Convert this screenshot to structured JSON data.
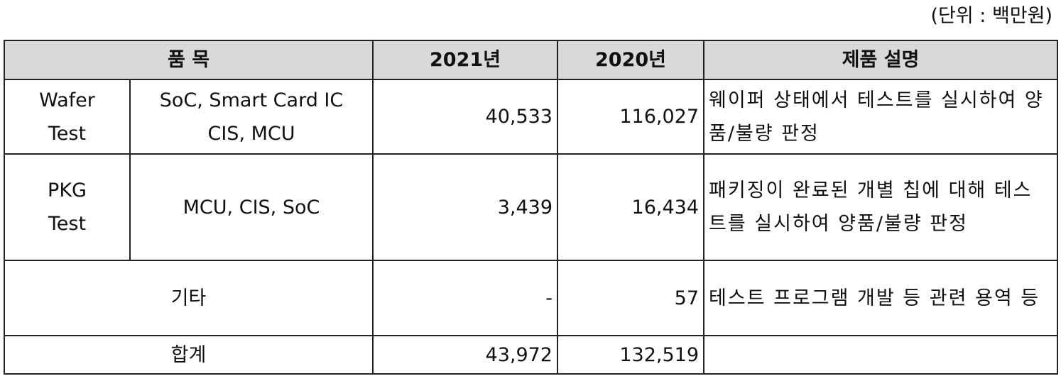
{
  "unit_note": "(단위 : 백만원)",
  "table": {
    "header": [
      "품 목",
      "2021년",
      "2020년",
      "제품 설명"
    ],
    "rows": [
      {
        "group": [
          "Wafer",
          "Test"
        ],
        "items": [
          "SoC, Smart Card IC",
          "CIS, MCU"
        ],
        "y2021": "40,533",
        "y2020": "116,027",
        "description": "웨이퍼 상태에서 테스트를 실시하여 양품/불량 판정"
      },
      {
        "group": [
          "PKG",
          "Test"
        ],
        "items": [
          "MCU, CIS, SoC"
        ],
        "y2021": "3,439",
        "y2020": "16,434",
        "description": "패키징이 완료된 개별 칩에 대해 테스트를 실시하여 양품/불량 판정"
      },
      {
        "label": "기타",
        "y2021": "-",
        "y2020": "57",
        "description": "테스트 프로그램 개발 등 관련 용역 등"
      },
      {
        "label": "합계",
        "y2021": "43,972",
        "y2020": "132,519"
      }
    ]
  }
}
